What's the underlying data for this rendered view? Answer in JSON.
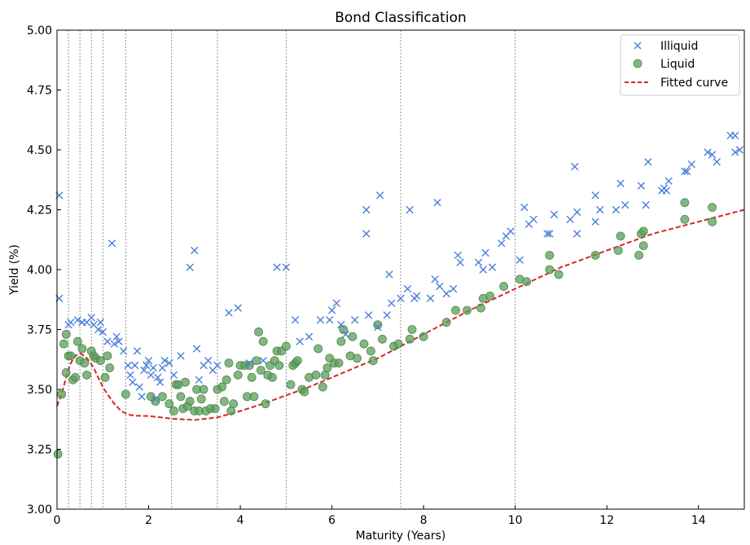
{
  "chart_data": {
    "type": "scatter",
    "title": "Bond Classification",
    "xlabel": "Maturity (Years)",
    "ylabel": "Yield (%)",
    "xlim": [
      0,
      15
    ],
    "ylim": [
      3.0,
      5.0
    ],
    "xticks": [
      0,
      2,
      4,
      6,
      8,
      10,
      12,
      14
    ],
    "yticks": [
      3.0,
      3.25,
      3.5,
      3.75,
      4.0,
      4.25,
      4.5,
      4.75,
      5.0
    ],
    "xtick_labels": [
      "0",
      "2",
      "4",
      "6",
      "8",
      "10",
      "12",
      "14"
    ],
    "ytick_labels": [
      "3.00",
      "3.25",
      "3.50",
      "3.75",
      "4.00",
      "4.25",
      "4.50",
      "4.75",
      "5.00"
    ],
    "vertical_lines_x": [
      0.25,
      0.5,
      0.75,
      1,
      1.5,
      2.5,
      3.5,
      5,
      7.5,
      10
    ],
    "legend_position": "top-right",
    "grid": false,
    "series": [
      {
        "name": "Illiquid",
        "marker": "x",
        "color": "#4a7fd9",
        "points": [
          [
            0.05,
            4.31
          ],
          [
            0.05,
            3.88
          ],
          [
            0.25,
            3.77
          ],
          [
            0.3,
            3.78
          ],
          [
            0.45,
            3.79
          ],
          [
            0.55,
            3.78
          ],
          [
            0.65,
            3.78
          ],
          [
            0.75,
            3.8
          ],
          [
            0.8,
            3.77
          ],
          [
            0.9,
            3.75
          ],
          [
            0.95,
            3.78
          ],
          [
            1.0,
            3.74
          ],
          [
            1.1,
            3.7
          ],
          [
            1.2,
            4.11
          ],
          [
            1.25,
            3.69
          ],
          [
            1.3,
            3.72
          ],
          [
            1.35,
            3.7
          ],
          [
            1.45,
            3.66
          ],
          [
            1.55,
            3.6
          ],
          [
            1.6,
            3.56
          ],
          [
            1.65,
            3.53
          ],
          [
            1.7,
            3.6
          ],
          [
            1.75,
            3.66
          ],
          [
            1.8,
            3.51
          ],
          [
            1.85,
            3.47
          ],
          [
            1.9,
            3.58
          ],
          [
            1.95,
            3.6
          ],
          [
            2.0,
            3.62
          ],
          [
            2.05,
            3.56
          ],
          [
            2.1,
            3.59
          ],
          [
            2.15,
            3.46
          ],
          [
            2.2,
            3.55
          ],
          [
            2.25,
            3.53
          ],
          [
            2.3,
            3.59
          ],
          [
            2.35,
            3.62
          ],
          [
            2.45,
            3.61
          ],
          [
            2.55,
            3.56
          ],
          [
            2.7,
            3.64
          ],
          [
            2.9,
            4.01
          ],
          [
            3.0,
            4.08
          ],
          [
            3.05,
            3.67
          ],
          [
            3.1,
            3.54
          ],
          [
            3.2,
            3.6
          ],
          [
            3.3,
            3.62
          ],
          [
            3.4,
            3.58
          ],
          [
            3.5,
            3.6
          ],
          [
            3.75,
            3.82
          ],
          [
            3.95,
            3.84
          ],
          [
            4.2,
            3.61
          ],
          [
            4.5,
            3.62
          ],
          [
            4.8,
            4.01
          ],
          [
            5.0,
            4.01
          ],
          [
            5.2,
            3.79
          ],
          [
            5.3,
            3.7
          ],
          [
            5.5,
            3.72
          ],
          [
            5.75,
            3.79
          ],
          [
            5.95,
            3.79
          ],
          [
            6.0,
            3.83
          ],
          [
            6.1,
            3.86
          ],
          [
            6.2,
            3.77
          ],
          [
            6.3,
            3.73
          ],
          [
            6.5,
            3.79
          ],
          [
            6.75,
            4.25
          ],
          [
            6.75,
            4.15
          ],
          [
            6.8,
            3.81
          ],
          [
            7.0,
            3.76
          ],
          [
            7.05,
            4.31
          ],
          [
            7.2,
            3.81
          ],
          [
            7.25,
            3.98
          ],
          [
            7.3,
            3.86
          ],
          [
            7.5,
            3.88
          ],
          [
            7.65,
            3.92
          ],
          [
            7.7,
            4.25
          ],
          [
            7.8,
            3.88
          ],
          [
            7.85,
            3.89
          ],
          [
            8.15,
            3.88
          ],
          [
            8.25,
            3.96
          ],
          [
            8.3,
            4.28
          ],
          [
            8.35,
            3.93
          ],
          [
            8.5,
            3.9
          ],
          [
            8.65,
            3.92
          ],
          [
            8.75,
            4.06
          ],
          [
            8.8,
            4.03
          ],
          [
            9.2,
            4.03
          ],
          [
            9.3,
            4.0
          ],
          [
            9.35,
            4.07
          ],
          [
            9.5,
            4.01
          ],
          [
            9.7,
            4.11
          ],
          [
            9.8,
            4.14
          ],
          [
            9.9,
            4.16
          ],
          [
            10.1,
            4.04
          ],
          [
            10.2,
            4.26
          ],
          [
            10.3,
            4.19
          ],
          [
            10.4,
            4.21
          ],
          [
            10.7,
            4.15
          ],
          [
            10.75,
            4.15
          ],
          [
            10.85,
            4.23
          ],
          [
            11.2,
            4.21
          ],
          [
            11.3,
            4.43
          ],
          [
            11.35,
            4.24
          ],
          [
            11.35,
            4.15
          ],
          [
            11.75,
            4.31
          ],
          [
            11.75,
            4.2
          ],
          [
            11.85,
            4.25
          ],
          [
            12.2,
            4.25
          ],
          [
            12.3,
            4.36
          ],
          [
            12.4,
            4.27
          ],
          [
            12.75,
            4.35
          ],
          [
            12.85,
            4.27
          ],
          [
            12.9,
            4.45
          ],
          [
            13.2,
            4.33
          ],
          [
            13.25,
            4.34
          ],
          [
            13.3,
            4.33
          ],
          [
            13.35,
            4.37
          ],
          [
            13.7,
            4.41
          ],
          [
            13.75,
            4.41
          ],
          [
            13.85,
            4.44
          ],
          [
            14.2,
            4.49
          ],
          [
            14.3,
            4.48
          ],
          [
            14.4,
            4.45
          ],
          [
            14.7,
            4.56
          ],
          [
            14.8,
            4.49
          ],
          [
            14.8,
            4.56
          ],
          [
            14.9,
            4.5
          ]
        ]
      },
      {
        "name": "Liquid",
        "marker": "o",
        "color": "#5a9e5a",
        "points": [
          [
            0.02,
            3.23
          ],
          [
            0.1,
            3.48
          ],
          [
            0.15,
            3.69
          ],
          [
            0.2,
            3.73
          ],
          [
            0.2,
            3.57
          ],
          [
            0.25,
            3.64
          ],
          [
            0.3,
            3.64
          ],
          [
            0.35,
            3.54
          ],
          [
            0.4,
            3.55
          ],
          [
            0.45,
            3.7
          ],
          [
            0.5,
            3.62
          ],
          [
            0.55,
            3.67
          ],
          [
            0.6,
            3.61
          ],
          [
            0.65,
            3.56
          ],
          [
            0.75,
            3.66
          ],
          [
            0.8,
            3.64
          ],
          [
            0.85,
            3.63
          ],
          [
            0.95,
            3.62
          ],
          [
            1.05,
            3.55
          ],
          [
            1.1,
            3.64
          ],
          [
            1.15,
            3.59
          ],
          [
            1.5,
            3.48
          ],
          [
            2.05,
            3.47
          ],
          [
            2.15,
            3.45
          ],
          [
            2.3,
            3.47
          ],
          [
            2.45,
            3.44
          ],
          [
            2.55,
            3.41
          ],
          [
            2.6,
            3.52
          ],
          [
            2.65,
            3.52
          ],
          [
            2.7,
            3.47
          ],
          [
            2.75,
            3.42
          ],
          [
            2.8,
            3.53
          ],
          [
            2.85,
            3.43
          ],
          [
            2.9,
            3.45
          ],
          [
            3.0,
            3.41
          ],
          [
            3.05,
            3.5
          ],
          [
            3.1,
            3.41
          ],
          [
            3.15,
            3.46
          ],
          [
            3.2,
            3.5
          ],
          [
            3.25,
            3.41
          ],
          [
            3.35,
            3.42
          ],
          [
            3.45,
            3.42
          ],
          [
            3.5,
            3.5
          ],
          [
            3.6,
            3.51
          ],
          [
            3.65,
            3.45
          ],
          [
            3.7,
            3.54
          ],
          [
            3.75,
            3.61
          ],
          [
            3.8,
            3.41
          ],
          [
            3.85,
            3.44
          ],
          [
            3.95,
            3.56
          ],
          [
            4.0,
            3.6
          ],
          [
            4.1,
            3.6
          ],
          [
            4.15,
            3.47
          ],
          [
            4.2,
            3.6
          ],
          [
            4.25,
            3.55
          ],
          [
            4.3,
            3.47
          ],
          [
            4.35,
            3.62
          ],
          [
            4.4,
            3.74
          ],
          [
            4.45,
            3.58
          ],
          [
            4.5,
            3.7
          ],
          [
            4.55,
            3.44
          ],
          [
            4.6,
            3.56
          ],
          [
            4.65,
            3.6
          ],
          [
            4.7,
            3.55
          ],
          [
            4.75,
            3.62
          ],
          [
            4.8,
            3.66
          ],
          [
            4.85,
            3.6
          ],
          [
            4.9,
            3.66
          ],
          [
            5.0,
            3.68
          ],
          [
            5.1,
            3.52
          ],
          [
            5.15,
            3.6
          ],
          [
            5.2,
            3.61
          ],
          [
            5.25,
            3.62
          ],
          [
            5.35,
            3.5
          ],
          [
            5.4,
            3.49
          ],
          [
            5.5,
            3.55
          ],
          [
            5.65,
            3.56
          ],
          [
            5.7,
            3.67
          ],
          [
            5.8,
            3.51
          ],
          [
            5.85,
            3.56
          ],
          [
            5.9,
            3.59
          ],
          [
            5.95,
            3.63
          ],
          [
            6.05,
            3.61
          ],
          [
            6.15,
            3.61
          ],
          [
            6.2,
            3.7
          ],
          [
            6.25,
            3.75
          ],
          [
            6.4,
            3.64
          ],
          [
            6.45,
            3.72
          ],
          [
            6.55,
            3.63
          ],
          [
            6.7,
            3.69
          ],
          [
            6.85,
            3.66
          ],
          [
            6.9,
            3.62
          ],
          [
            7.0,
            3.77
          ],
          [
            7.1,
            3.71
          ],
          [
            7.35,
            3.68
          ],
          [
            7.45,
            3.69
          ],
          [
            7.7,
            3.71
          ],
          [
            7.75,
            3.75
          ],
          [
            8.0,
            3.72
          ],
          [
            8.5,
            3.78
          ],
          [
            8.7,
            3.83
          ],
          [
            8.95,
            3.83
          ],
          [
            9.25,
            3.84
          ],
          [
            9.3,
            3.88
          ],
          [
            9.45,
            3.89
          ],
          [
            9.75,
            3.93
          ],
          [
            10.1,
            3.96
          ],
          [
            10.25,
            3.95
          ],
          [
            10.75,
            4.06
          ],
          [
            10.75,
            4.0
          ],
          [
            10.95,
            3.98
          ],
          [
            11.75,
            4.06
          ],
          [
            12.25,
            4.08
          ],
          [
            12.3,
            4.14
          ],
          [
            12.7,
            4.06
          ],
          [
            12.75,
            4.15
          ],
          [
            12.8,
            4.16
          ],
          [
            12.8,
            4.1
          ],
          [
            13.7,
            4.28
          ],
          [
            13.7,
            4.21
          ],
          [
            14.3,
            4.26
          ],
          [
            14.3,
            4.2
          ]
        ]
      },
      {
        "name": "Fitted curve",
        "line_style": "dashed",
        "color": "#d62728",
        "points": [
          [
            0.0,
            3.43
          ],
          [
            0.1,
            3.48
          ],
          [
            0.2,
            3.55
          ],
          [
            0.3,
            3.61
          ],
          [
            0.4,
            3.64
          ],
          [
            0.5,
            3.65
          ],
          [
            0.6,
            3.64
          ],
          [
            0.7,
            3.62
          ],
          [
            0.8,
            3.59
          ],
          [
            0.9,
            3.55
          ],
          [
            1.0,
            3.51
          ],
          [
            1.1,
            3.48
          ],
          [
            1.25,
            3.44
          ],
          [
            1.4,
            3.41
          ],
          [
            1.55,
            3.395
          ],
          [
            1.7,
            3.39
          ],
          [
            2.0,
            3.389
          ],
          [
            2.5,
            3.378
          ],
          [
            3.0,
            3.372
          ],
          [
            3.5,
            3.383
          ],
          [
            4.0,
            3.41
          ],
          [
            4.5,
            3.44
          ],
          [
            5.0,
            3.475
          ],
          [
            5.5,
            3.51
          ],
          [
            6.0,
            3.55
          ],
          [
            6.5,
            3.59
          ],
          [
            7.0,
            3.63
          ],
          [
            7.5,
            3.68
          ],
          [
            8.0,
            3.73
          ],
          [
            8.5,
            3.78
          ],
          [
            9.0,
            3.83
          ],
          [
            9.5,
            3.875
          ],
          [
            10.0,
            3.92
          ],
          [
            10.5,
            3.965
          ],
          [
            11.0,
            4.01
          ],
          [
            11.5,
            4.045
          ],
          [
            12.0,
            4.08
          ],
          [
            12.5,
            4.115
          ],
          [
            13.0,
            4.15
          ],
          [
            13.5,
            4.175
          ],
          [
            14.0,
            4.2
          ],
          [
            14.5,
            4.225
          ],
          [
            15.0,
            4.25
          ]
        ]
      }
    ]
  }
}
